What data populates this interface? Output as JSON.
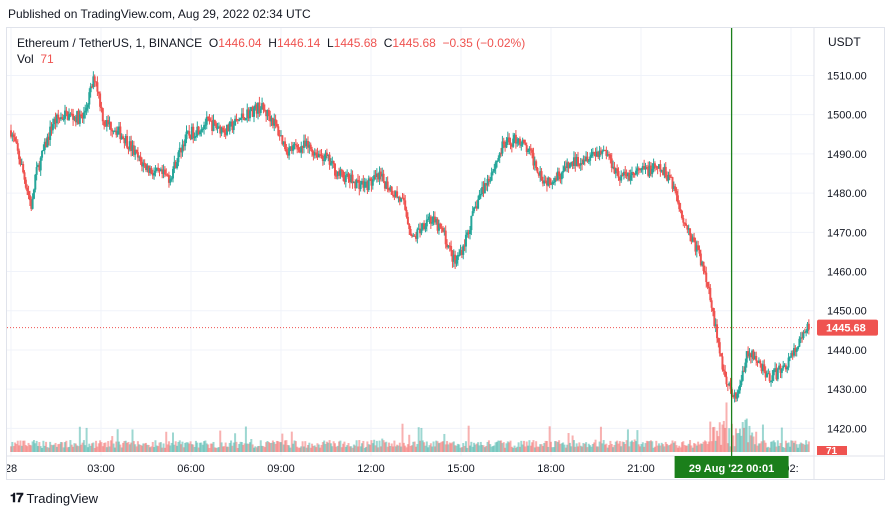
{
  "header": {
    "published": "Published on TradingView.com, Aug 29, 2022 02:34 UTC"
  },
  "legend": {
    "symbol": "Ethereum / TetherUS, 1, BINANCE",
    "o_label": "O",
    "o_value": "1446.04",
    "h_label": "H",
    "h_value": "1446.14",
    "l_label": "L",
    "l_value": "1445.68",
    "c_label": "C",
    "c_value": "1445.68",
    "change": "−0.35 (−0.02%)",
    "vol_label": "Vol",
    "vol_value": "71"
  },
  "price_axis": {
    "currency": "USDT"
  },
  "footer": {
    "brand": "TradingView"
  },
  "colors": {
    "up": "#26a69a",
    "down": "#ef5350",
    "crosshair": "#1b7f1b",
    "price_line": "#ef5350"
  },
  "chart_data": {
    "type": "candlestick",
    "ylim": [
      1415,
      1517
    ],
    "y_ticks": [
      "1510.00",
      "1500.00",
      "1490.00",
      "1480.00",
      "1470.00",
      "1460.00",
      "1450.00",
      "1440.00",
      "1430.00",
      "1420.00"
    ],
    "x_ticks": [
      "28",
      "03:00",
      "06:00",
      "09:00",
      "12:00",
      "15:00",
      "18:00",
      "21:00",
      "02:"
    ],
    "x_tick_hours": [
      0,
      3,
      6,
      9,
      12,
      15,
      18,
      21,
      26
    ],
    "last_price_label": "1445.68",
    "last_price": 1445.68,
    "volume_label": "71",
    "crosshair_label": "29 Aug '22   00:01",
    "crosshair_hour": 24.02,
    "series_keypoints": [
      [
        0.0,
        1496
      ],
      [
        0.35,
        1487
      ],
      [
        0.7,
        1476
      ],
      [
        0.8,
        1484
      ],
      [
        1.4,
        1498
      ],
      [
        1.8,
        1500
      ],
      [
        2.4,
        1499
      ],
      [
        2.8,
        1510
      ],
      [
        3.1,
        1498
      ],
      [
        3.4,
        1497
      ],
      [
        3.8,
        1494
      ],
      [
        4.3,
        1488
      ],
      [
        4.8,
        1485
      ],
      [
        5.3,
        1484
      ],
      [
        5.8,
        1494
      ],
      [
        6.5,
        1498
      ],
      [
        7.2,
        1496
      ],
      [
        7.8,
        1500
      ],
      [
        8.3,
        1502
      ],
      [
        8.7,
        1499
      ],
      [
        9.2,
        1491
      ],
      [
        9.8,
        1492
      ],
      [
        10.5,
        1489
      ],
      [
        10.9,
        1485
      ],
      [
        11.4,
        1483
      ],
      [
        11.8,
        1482
      ],
      [
        12.3,
        1484
      ],
      [
        12.8,
        1480
      ],
      [
        13.1,
        1477
      ],
      [
        13.4,
        1468
      ],
      [
        13.9,
        1474
      ],
      [
        14.4,
        1470
      ],
      [
        14.8,
        1462
      ],
      [
        15.1,
        1467
      ],
      [
        15.6,
        1479
      ],
      [
        16.0,
        1485
      ],
      [
        16.4,
        1492
      ],
      [
        16.9,
        1494
      ],
      [
        17.3,
        1490
      ],
      [
        17.8,
        1483
      ],
      [
        18.3,
        1485
      ],
      [
        18.8,
        1488
      ],
      [
        19.3,
        1490
      ],
      [
        19.8,
        1491
      ],
      [
        20.3,
        1484
      ],
      [
        20.8,
        1485
      ],
      [
        21.2,
        1486
      ],
      [
        21.6,
        1486
      ],
      [
        22.0,
        1484
      ],
      [
        22.3,
        1476
      ],
      [
        22.6,
        1470
      ],
      [
        22.9,
        1465
      ],
      [
        23.1,
        1460
      ],
      [
        23.3,
        1454
      ],
      [
        23.6,
        1440
      ],
      [
        23.9,
        1431
      ],
      [
        24.2,
        1427
      ],
      [
        24.4,
        1435
      ],
      [
        24.6,
        1440
      ],
      [
        24.9,
        1437
      ],
      [
        25.3,
        1433
      ],
      [
        25.7,
        1435
      ],
      [
        26.0,
        1438
      ],
      [
        26.3,
        1442
      ],
      [
        26.6,
        1446
      ]
    ]
  }
}
